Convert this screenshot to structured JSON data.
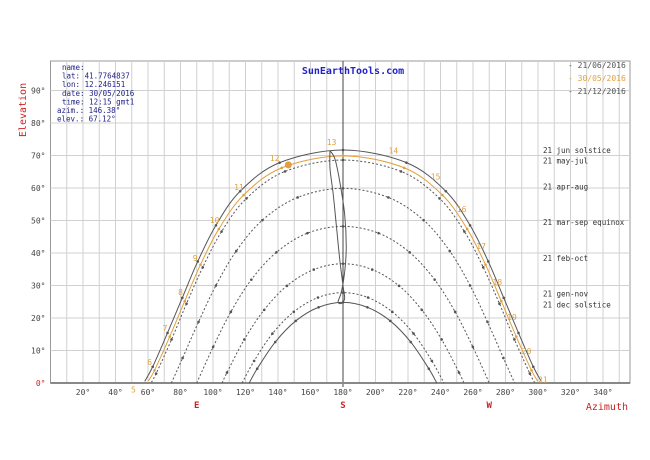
{
  "chart_data": {
    "type": "line",
    "title": "SunEarthTools.com",
    "xlabel": "Azimuth",
    "ylabel": "Elevation",
    "xlim": [
      0,
      356
    ],
    "ylim": [
      0,
      100
    ],
    "grid": true,
    "x_ticks": [
      "20°",
      "40°",
      "60°",
      "80°",
      "100°",
      "120°",
      "140°",
      "160°",
      "180°",
      "200°",
      "220°",
      "240°",
      "260°",
      "280°",
      "300°",
      "320°",
      "340°"
    ],
    "x_tick_values": [
      20,
      40,
      60,
      80,
      100,
      120,
      140,
      160,
      180,
      200,
      220,
      240,
      260,
      280,
      300,
      320,
      340
    ],
    "y_ticks": [
      "0°",
      "10°",
      "20°",
      "30°",
      "40°",
      "50°",
      "60°",
      "70°",
      "80°",
      "90°"
    ],
    "y_tick_values": [
      0,
      10,
      20,
      30,
      40,
      50,
      60,
      70,
      80,
      90
    ],
    "cardinals": [
      {
        "label": "E",
        "az": 90
      },
      {
        "label": "S",
        "az": 180
      },
      {
        "label": "W",
        "az": 270
      }
    ],
    "info": {
      "name": "name:",
      "lat": " lat: 41.7764837",
      "lon": " lon: 12.246151",
      "date": "date: 30/05/2016",
      "time": "time: 12:15 gmt1",
      "azim": "azim.: 146.38°",
      "elev": "elev.: 67.12°"
    },
    "current_sun": {
      "az": 146.38,
      "el": 67.12
    },
    "legend": [
      {
        "label": "- 21/06/2016",
        "color": "#555555"
      },
      {
        "label": "- 30/05/2016",
        "color": "#e0a040"
      },
      {
        "label": "- 21/12/2016",
        "color": "#555555"
      }
    ],
    "colors": {
      "grid": "#d0d0d0",
      "curve": "#555555",
      "date_curve": "#e0a040",
      "axis_label": "#cc2222",
      "title": "#2222cc",
      "info": "#222288"
    },
    "series": [
      {
        "name": "21 jun  solstice",
        "style": "solid",
        "label_el": 71.7,
        "points": [
          [
            58,
            0.5
          ],
          [
            62.9,
            5
          ],
          [
            72,
            15.4
          ],
          [
            81.1,
            26.2
          ],
          [
            90.6,
            37.4
          ],
          [
            101.8,
            48.5
          ],
          [
            116.7,
            59
          ],
          [
            141,
            67.8
          ],
          [
            180,
            71.7
          ],
          [
            219,
            67.8
          ],
          [
            243.3,
            59
          ],
          [
            258.2,
            48.5
          ],
          [
            269.4,
            37.4
          ],
          [
            278.9,
            26.2
          ],
          [
            288,
            15.4
          ],
          [
            297.1,
            5
          ],
          [
            302,
            0.5
          ]
        ]
      },
      {
        "name": "21 may-jul",
        "style": "dotted",
        "label_el": 68.4,
        "points": [
          [
            62.1,
            0.2
          ],
          [
            65,
            2.9
          ],
          [
            74.5,
            13.4
          ],
          [
            83.7,
            24.4
          ],
          [
            93.7,
            35.6
          ],
          [
            105.3,
            46.6
          ],
          [
            120.6,
            56.8
          ],
          [
            144.3,
            65.1
          ],
          [
            180,
            68.6
          ],
          [
            215.7,
            65.1
          ],
          [
            239.4,
            56.8
          ],
          [
            254.7,
            46.6
          ],
          [
            266.3,
            35.6
          ],
          [
            276.3,
            24.4
          ],
          [
            285.5,
            13.4
          ],
          [
            295,
            2.9
          ],
          [
            297.9,
            0.2
          ]
        ]
      },
      {
        "name": "21 apr-aug",
        "style": "dotted",
        "label_el": 60.5,
        "points": [
          [
            74.4,
            0
          ],
          [
            81.3,
            7.7
          ],
          [
            91.1,
            18.8
          ],
          [
            101.8,
            30
          ],
          [
            114.3,
            40.6
          ],
          [
            130.4,
            50.1
          ],
          [
            152.1,
            57.1
          ],
          [
            180,
            59.9
          ],
          [
            207.9,
            57.1
          ],
          [
            229.6,
            50.1
          ],
          [
            245.7,
            40.6
          ],
          [
            258.2,
            30
          ],
          [
            268.9,
            18.8
          ],
          [
            278.7,
            7.7
          ],
          [
            285.6,
            0
          ]
        ]
      },
      {
        "name": "21 mar-sep equinox",
        "style": "dotted",
        "label_el": 49.5,
        "points": [
          [
            90,
            0
          ],
          [
            100.1,
            11.1
          ],
          [
            111,
            21.9
          ],
          [
            123.6,
            31.8
          ],
          [
            139,
            40.2
          ],
          [
            158.1,
            46.1
          ],
          [
            180,
            48.2
          ],
          [
            201.9,
            46.1
          ],
          [
            221,
            40.2
          ],
          [
            236.4,
            31.8
          ],
          [
            249,
            21.9
          ],
          [
            259.9,
            11.1
          ],
          [
            270,
            0
          ]
        ]
      },
      {
        "name": "21 feb-oct",
        "style": "dotted",
        "label_el": 38.5,
        "points": [
          [
            105.6,
            0
          ],
          [
            108.6,
            3.2
          ],
          [
            119.3,
            13.4
          ],
          [
            131.5,
            22.5
          ],
          [
            145.5,
            29.9
          ],
          [
            162,
            34.9
          ],
          [
            180,
            36.7
          ],
          [
            198,
            34.9
          ],
          [
            214.5,
            29.9
          ],
          [
            228.5,
            22.5
          ],
          [
            240.7,
            13.4
          ],
          [
            251.4,
            3.2
          ],
          [
            254.4,
            0
          ]
        ]
      },
      {
        "name": "21 gen-nov",
        "style": "dotted",
        "label_el": 27.5,
        "points": [
          [
            117.9,
            0
          ],
          [
            125.3,
            6.8
          ],
          [
            136.6,
            15.2
          ],
          [
            149.7,
            21.9
          ],
          [
            164.6,
            26.3
          ],
          [
            180,
            27.8
          ],
          [
            195.4,
            26.3
          ],
          [
            210.3,
            21.9
          ],
          [
            223.4,
            15.2
          ],
          [
            234.7,
            6.8
          ],
          [
            242.1,
            0
          ]
        ]
      },
      {
        "name": "21 dec  solstice",
        "style": "solid",
        "label_el": 24.2,
        "points": [
          [
            122.3,
            0
          ],
          [
            127.2,
            4.4
          ],
          [
            138.3,
            12.6
          ],
          [
            150.9,
            19.1
          ],
          [
            165,
            23.3
          ],
          [
            180,
            24.8
          ],
          [
            195,
            23.3
          ],
          [
            209.1,
            19.1
          ],
          [
            221.7,
            12.6
          ],
          [
            232.8,
            4.4
          ],
          [
            237.7,
            0
          ]
        ]
      },
      {
        "name": "",
        "style": "date",
        "label_el": null,
        "points": [
          [
            60.2,
            0.6
          ],
          [
            64,
            3.9
          ],
          [
            73.4,
            14.3
          ],
          [
            82.6,
            25.2
          ],
          [
            92.3,
            36.4
          ],
          [
            103.6,
            47.4
          ],
          [
            118.8,
            57.8
          ],
          [
            142.3,
            66.2
          ],
          [
            180,
            69.9
          ],
          [
            217.7,
            66.2
          ],
          [
            241.2,
            57.8
          ],
          [
            256.4,
            47.4
          ],
          [
            267.7,
            36.4
          ],
          [
            277.4,
            25.2
          ],
          [
            286.6,
            14.3
          ],
          [
            296,
            3.9
          ],
          [
            299.8,
            0.6
          ]
        ]
      }
    ],
    "analemma": [
      [
        172,
        71.5
      ],
      [
        175,
        69
      ],
      [
        178,
        62
      ],
      [
        181,
        52
      ],
      [
        182,
        42
      ],
      [
        181,
        34
      ],
      [
        179,
        28
      ],
      [
        177,
        25
      ],
      [
        179,
        24.5
      ],
      [
        181,
        26
      ],
      [
        180,
        30
      ],
      [
        178,
        38
      ],
      [
        176,
        48
      ],
      [
        174,
        58
      ],
      [
        172,
        66
      ],
      [
        172,
        71.5
      ]
    ],
    "hour_labels": [
      {
        "h": "5",
        "az": 51,
        "el": -3.5
      },
      {
        "h": "6",
        "az": 61,
        "el": 5
      },
      {
        "h": "7",
        "az": 70.5,
        "el": 15.4
      },
      {
        "h": "8",
        "az": 80,
        "el": 26.5
      },
      {
        "h": "9",
        "az": 89,
        "el": 37
      },
      {
        "h": "10",
        "az": 101,
        "el": 48.6
      },
      {
        "h": "11",
        "az": 116,
        "el": 58.8
      },
      {
        "h": "12",
        "az": 138,
        "el": 67.7
      },
      {
        "h": "13",
        "az": 173,
        "el": 72.6
      },
      {
        "h": "14",
        "az": 211,
        "el": 70
      },
      {
        "h": "15",
        "az": 237,
        "el": 62
      },
      {
        "h": "16",
        "az": 253,
        "el": 52
      },
      {
        "h": "17",
        "az": 265,
        "el": 40.6
      },
      {
        "h": "18",
        "az": 275,
        "el": 29.5
      },
      {
        "h": "19",
        "az": 284,
        "el": 18.8
      },
      {
        "h": "20",
        "az": 293,
        "el": 8.3
      },
      {
        "h": "21",
        "az": 303,
        "el": -0.5
      }
    ]
  }
}
